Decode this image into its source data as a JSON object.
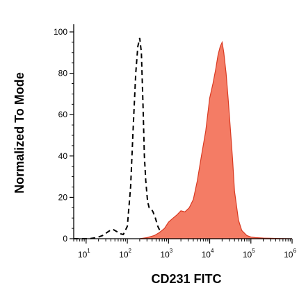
{
  "chart_data": {
    "type": "area",
    "xlabel": "CD231 FITC",
    "ylabel": "Normalized To Mode",
    "xscale": "log",
    "xlim": [
      5,
      1000000
    ],
    "ylim": [
      0,
      100
    ],
    "grid": false,
    "legend": "none",
    "y_ticks": [
      {
        "value": 0,
        "label": "0"
      },
      {
        "value": 20,
        "label": "20"
      },
      {
        "value": 40,
        "label": "40"
      },
      {
        "value": 60,
        "label": "60"
      },
      {
        "value": 80,
        "label": "80"
      },
      {
        "value": 100,
        "label": "100"
      }
    ],
    "x_ticks": [
      {
        "value": 10,
        "base": "10",
        "exp": "1"
      },
      {
        "value": 100,
        "base": "10",
        "exp": "2"
      },
      {
        "value": 1000,
        "base": "10",
        "exp": "3"
      },
      {
        "value": 10000,
        "base": "10",
        "exp": "4"
      },
      {
        "value": 100000,
        "base": "10",
        "exp": "5"
      },
      {
        "value": 1000000,
        "base": "10",
        "exp": "6"
      }
    ],
    "series": [
      {
        "style": "dashed",
        "color": "#000000",
        "x": [
          5,
          8,
          12,
          18,
          25,
          32,
          38,
          45,
          55,
          65,
          80,
          100,
          120,
          140,
          160,
          180,
          200,
          220,
          240,
          260,
          280,
          310,
          340,
          380,
          420,
          480,
          550,
          650,
          800,
          1000
        ],
        "y": [
          0,
          0,
          0,
          0.5,
          1.5,
          3,
          4,
          4.5,
          3.5,
          2.5,
          2,
          6,
          25,
          55,
          80,
          93,
          97,
          90,
          65,
          40,
          28,
          18,
          15,
          14.5,
          13,
          10,
          6,
          3,
          1,
          0
        ]
      },
      {
        "style": "filled",
        "color": "#f47c65",
        "x": [
          200,
          300,
          450,
          600,
          800,
          1000,
          1300,
          1600,
          2000,
          2500,
          3200,
          4000,
          5000,
          6300,
          8000,
          10000,
          12000,
          14000,
          16000,
          18000,
          20000,
          22000,
          25000,
          28000,
          32000,
          36000,
          40000,
          50000,
          60000,
          80000,
          100000,
          130000,
          200000,
          300000,
          500000,
          1000000
        ],
        "y": [
          0,
          0.5,
          1.5,
          3,
          5,
          8,
          10,
          11.5,
          13.5,
          13,
          15,
          19,
          28,
          40,
          52,
          68,
          75,
          82,
          89,
          93,
          95,
          90,
          80,
          68,
          52,
          38,
          23,
          9,
          4,
          1.5,
          0.8,
          0.5,
          0.3,
          0.2,
          0.1,
          0
        ]
      }
    ]
  }
}
